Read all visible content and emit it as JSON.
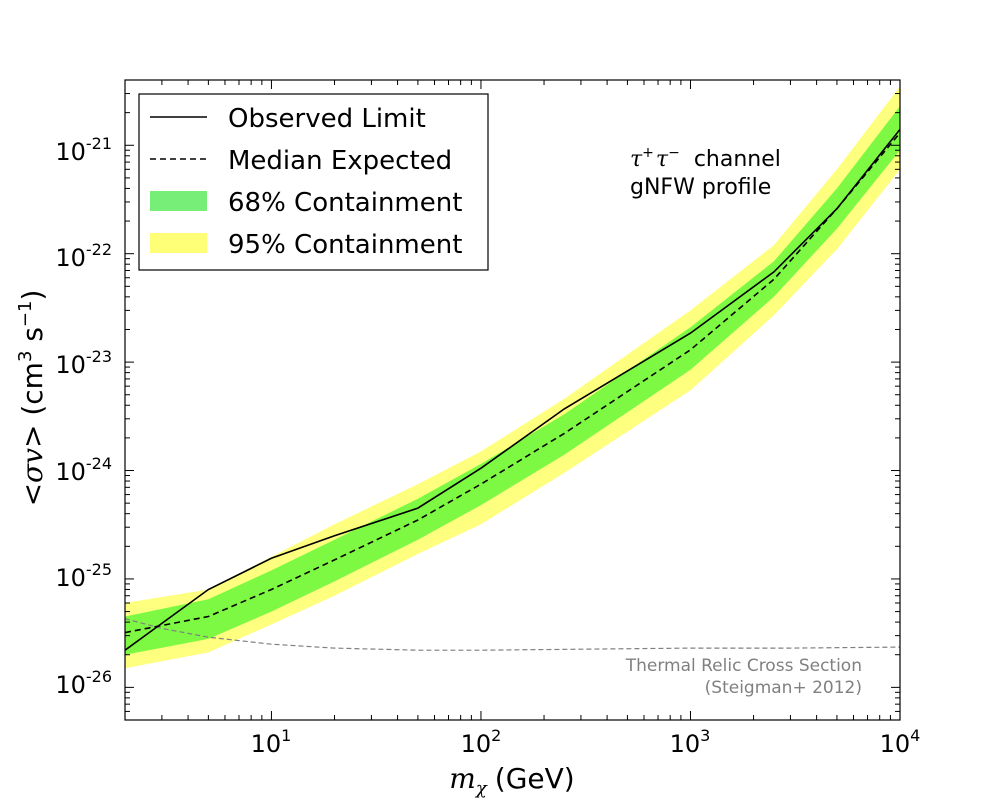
{
  "chart_data": {
    "type": "line",
    "xscale": "log",
    "yscale": "log",
    "xlim": [
      2,
      10000
    ],
    "ylim": [
      5e-27,
      4e-21
    ],
    "xlabel": {
      "symbol": "m",
      "subscript": "χ",
      "unit": "(GeV)"
    },
    "ylabel": {
      "prefix": "<",
      "symbol": "σv",
      "suffix": "> (cm",
      "sup1": "3",
      "mid": " s",
      "sup2": "−1",
      "end": ")"
    },
    "x_ticks": [
      {
        "value": 10,
        "base": "10",
        "exp": "1"
      },
      {
        "value": 100,
        "base": "10",
        "exp": "2"
      },
      {
        "value": 1000,
        "base": "10",
        "exp": "3"
      },
      {
        "value": 10000,
        "base": "10",
        "exp": "4"
      }
    ],
    "y_ticks": [
      {
        "value": 1e-26,
        "base": "10",
        "exp": "-26"
      },
      {
        "value": 1e-25,
        "base": "10",
        "exp": "-25"
      },
      {
        "value": 1e-24,
        "base": "10",
        "exp": "-24"
      },
      {
        "value": 1e-23,
        "base": "10",
        "exp": "-23"
      },
      {
        "value": 1e-22,
        "base": "10",
        "exp": "-22"
      },
      {
        "value": 1e-21,
        "base": "10",
        "exp": "-21"
      }
    ],
    "legend": {
      "position": "top-left",
      "entries": [
        {
          "label": "Observed Limit",
          "style": "solid-line",
          "color": "#000000"
        },
        {
          "label": "Median Expected",
          "style": "dashed-line",
          "color": "#000000"
        },
        {
          "label": "68% Containment",
          "style": "patch",
          "color": "#77ee77"
        },
        {
          "label": "95% Containment",
          "style": "patch",
          "color": "#ffff77"
        }
      ]
    },
    "annotation": {
      "channel_symbol": "τ",
      "channel_sup1": "+",
      "channel_symbol2": "τ",
      "channel_sup2": "−",
      "channel_word": "channel",
      "profile": "gNFW profile"
    },
    "relic_label": {
      "line1": "Thermal Relic Cross Section",
      "line2": "(Steigman+ 2012)",
      "color": "#808080"
    },
    "colors": {
      "band68": "#7ef943",
      "band95": "#ffff7f",
      "observed": "#000000",
      "median": "#000000",
      "relic": "#808080"
    },
    "series": [
      {
        "name": "Observed Limit",
        "x": [
          2,
          5,
          10,
          20,
          50,
          100,
          250,
          1000,
          2500,
          5000,
          10000
        ],
        "y": [
          2.2e-26,
          8e-26,
          1.55e-25,
          2.5e-25,
          4.5e-25,
          1.05e-24,
          3.7e-24,
          1.85e-23,
          6.8e-23,
          2.6e-22,
          1.4e-21
        ]
      },
      {
        "name": "Median Expected",
        "x": [
          2,
          5,
          10,
          20,
          50,
          100,
          250,
          1000,
          2500,
          5000,
          10000
        ],
        "y": [
          3.2e-26,
          4.5e-26,
          8e-26,
          1.5e-25,
          3.5e-25,
          7.5e-25,
          2.2e-24,
          1.3e-23,
          5.8e-23,
          2.6e-22,
          1.3e-21
        ]
      },
      {
        "name": "68% Containment",
        "x": [
          2,
          5,
          10,
          20,
          50,
          100,
          250,
          1000,
          2500,
          5000,
          10000
        ],
        "low": [
          2e-26,
          2.8e-26,
          5e-26,
          9.5e-26,
          2.3e-25,
          4.8e-25,
          1.4e-24,
          8.5e-24,
          4e-23,
          1.7e-22,
          9e-22
        ],
        "high": [
          4.5e-26,
          6.5e-26,
          1.2e-25,
          2.3e-25,
          5.5e-25,
          1.15e-24,
          3.3e-24,
          2.1e-23,
          8.5e-23,
          4e-22,
          2.3e-21
        ]
      },
      {
        "name": "95% Containment",
        "x": [
          2,
          5,
          10,
          20,
          50,
          100,
          250,
          1000,
          2500,
          5000,
          10000
        ],
        "low": [
          1.5e-26,
          2.1e-26,
          3.8e-26,
          7e-26,
          1.7e-25,
          3.2e-25,
          9.5e-25,
          5.5e-24,
          2.7e-23,
          1.1e-22,
          6e-22
        ],
        "high": [
          6e-26,
          8e-26,
          1.6e-25,
          3.2e-25,
          7.5e-25,
          1.5e-24,
          4.6e-24,
          3e-23,
          1.2e-22,
          6e-22,
          3.5e-21
        ]
      },
      {
        "name": "Thermal Relic Cross Section",
        "x": [
          2,
          3,
          5,
          10,
          20,
          50,
          100,
          300,
          1000,
          3000,
          10000
        ],
        "y": [
          4.3e-26,
          3.5e-26,
          2.9e-26,
          2.5e-26,
          2.3e-26,
          2.2e-26,
          2.2e-26,
          2.25e-26,
          2.3e-26,
          2.3e-26,
          2.35e-26
        ]
      }
    ]
  }
}
